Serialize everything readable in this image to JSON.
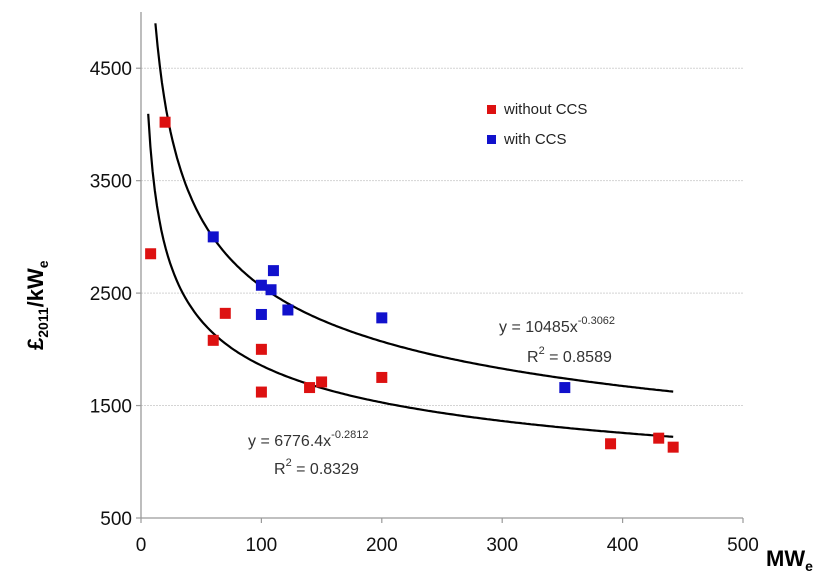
{
  "chart_data": {
    "type": "scatter",
    "title": "",
    "xlabel": "MW",
    "xlabel_sub": "e",
    "ylabel_main": "£",
    "ylabel_sub1": "2011",
    "ylabel_mid": "/kW",
    "ylabel_sub2": "e",
    "xlim": [
      0,
      500
    ],
    "ylim": [
      500,
      5000
    ],
    "x_ticks": [
      "0",
      "100",
      "200",
      "300",
      "400",
      "500"
    ],
    "y_ticks": [
      "500",
      "1500",
      "2500",
      "3500",
      "4500"
    ],
    "grid": true,
    "legend_position": "top-right",
    "colors": {
      "without_ccs": "#dd1111",
      "with_ccs": "#1111cc",
      "fit": "#000000",
      "grid": "#d4d4d4"
    },
    "series": [
      {
        "name": "without CCS",
        "color": "#dd1111",
        "points": [
          {
            "x": 8,
            "y": 2850
          },
          {
            "x": 20,
            "y": 4020
          },
          {
            "x": 60,
            "y": 2080
          },
          {
            "x": 70,
            "y": 2320
          },
          {
            "x": 100,
            "y": 2000
          },
          {
            "x": 100,
            "y": 1620
          },
          {
            "x": 140,
            "y": 1660
          },
          {
            "x": 150,
            "y": 1710
          },
          {
            "x": 200,
            "y": 1750
          },
          {
            "x": 390,
            "y": 1160
          },
          {
            "x": 430,
            "y": 1210
          },
          {
            "x": 442,
            "y": 1130
          }
        ],
        "fit": {
          "coefficient": 6776.4,
          "exponent": -0.2812,
          "x_range": [
            6,
            442
          ]
        },
        "equation_main": "y = 6776.4x",
        "equation_exp": "-0.2812",
        "r2_label": "R",
        "r2_sup": "2",
        "r2_value": " = 0.8329"
      },
      {
        "name": "with CCS",
        "color": "#1111cc",
        "points": [
          {
            "x": 60,
            "y": 3000
          },
          {
            "x": 100,
            "y": 2570
          },
          {
            "x": 100,
            "y": 2310
          },
          {
            "x": 108,
            "y": 2530
          },
          {
            "x": 110,
            "y": 2700
          },
          {
            "x": 122,
            "y": 2350
          },
          {
            "x": 200,
            "y": 2280
          },
          {
            "x": 352,
            "y": 1660
          }
        ],
        "fit": {
          "coefficient": 10485,
          "exponent": -0.3062,
          "x_range": [
            12,
            442
          ]
        },
        "equation_main": "y = 10485x",
        "equation_exp": "-0.3062",
        "r2_label": "R",
        "r2_sup": "2",
        "r2_value": " = 0.8589"
      }
    ]
  }
}
